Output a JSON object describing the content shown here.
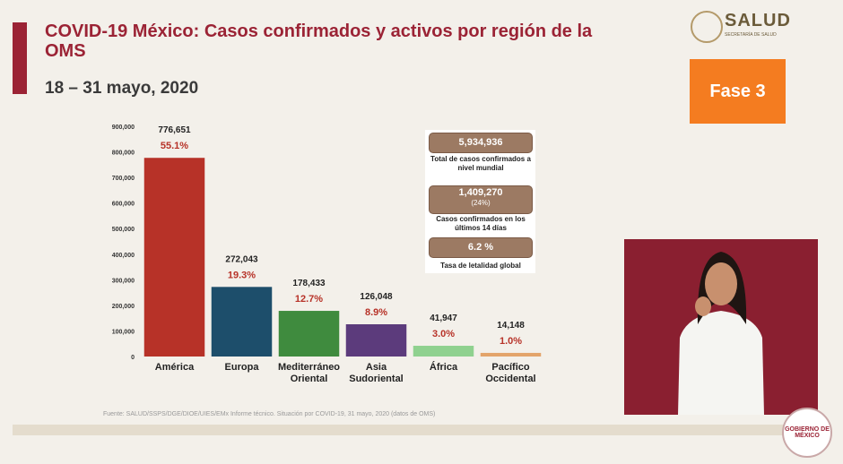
{
  "header": {
    "title": "COVID-19 México: Casos confirmados y activos por región de la OMS",
    "subtitle": "18 – 31 mayo, 2020",
    "logo": "SALUD",
    "logo_sub": "SECRETARÍA DE SALUD",
    "phase": "Fase 3"
  },
  "stats": [
    {
      "value": "5,934,936",
      "caption": "Total de casos confirmados a nivel mundial"
    },
    {
      "value": "1,409,270",
      "note": "(24%)",
      "caption": "Casos confirmados en los últimos 14 días"
    },
    {
      "value": "6.2 %",
      "caption": "Tasa de letalidad global"
    }
  ],
  "footer": {
    "source": "Fuente: SALUD/SSPS/DGE/DIOE/UIES/EMx Informe técnico. Situación por COVID-19, 31 mayo, 2020 (datos de OMS)",
    "seal": "GOBIERNO DE MÉXICO"
  },
  "chart_data": {
    "type": "bar",
    "categories": [
      "América",
      "Europa",
      "Mediterráneo Oriental",
      "Asia Sudoriental",
      "África",
      "Pacífico Occidental"
    ],
    "values": [
      776651,
      272043,
      178433,
      126048,
      41947,
      14148
    ],
    "value_labels": [
      "776,651",
      "272,043",
      "178,433",
      "126,048",
      "41,947",
      "14,148"
    ],
    "share_labels": [
      "55.1%",
      "19.3%",
      "12.7%",
      "8.9%",
      "3.0%",
      "1.0%"
    ],
    "colors": [
      "#b73228",
      "#1d4e6b",
      "#3f8b3e",
      "#5c3b7c",
      "#8fd18f",
      "#e3a46a"
    ],
    "ylim": [
      0,
      900000
    ],
    "yticks": [
      0,
      {
        "value": 100000,
        "label": "100,000"
      },
      {
        "value": 200000,
        "label": "200,000"
      },
      {
        "value": 300000,
        "label": "300,000"
      },
      {
        "value": 400000,
        "label": "400,000"
      },
      {
        "value": 500000,
        "label": "500,000"
      },
      {
        "value": 600000,
        "label": "600,000"
      },
      {
        "value": 700000,
        "label": "700,000"
      },
      {
        "value": 800000,
        "label": "800,000"
      },
      {
        "value": 900000,
        "label": "900,000"
      }
    ],
    "grid": false
  }
}
